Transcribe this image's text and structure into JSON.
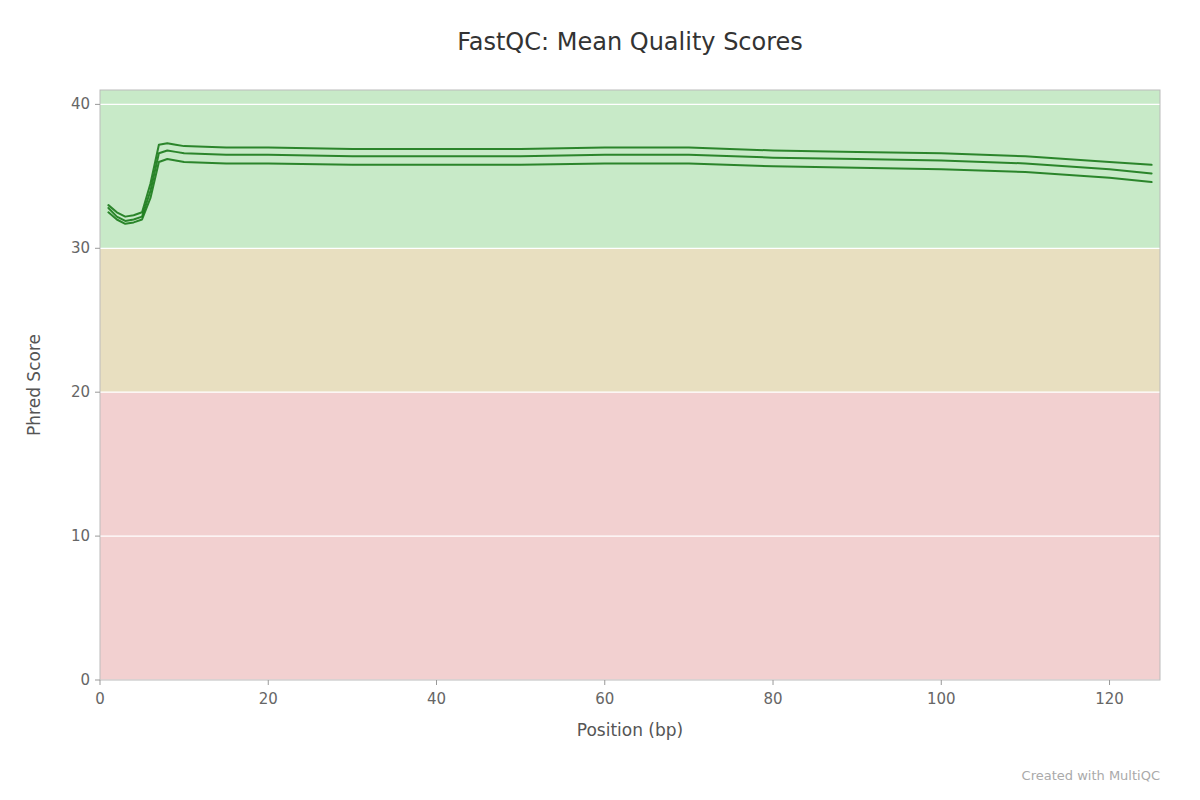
{
  "chart_data": {
    "type": "line",
    "title": "FastQC: Mean Quality Scores",
    "x_label": "Position (bp)",
    "y_label": "Phred Score",
    "annotations": [
      "Created with MultiQC"
    ],
    "xlim": [
      0,
      126
    ],
    "ylim": [
      0,
      41
    ],
    "xticks": [
      0,
      20,
      40,
      60,
      80,
      100,
      120
    ],
    "yticks": [
      0,
      10,
      20,
      30,
      40
    ],
    "grid": true,
    "bands": [
      {
        "ymin": 0,
        "ymax": 20,
        "color": "#f2d0d0"
      },
      {
        "ymin": 20,
        "ymax": 30,
        "color": "#e8dfc0"
      },
      {
        "ymin": 30,
        "ymax": 41,
        "color": "#c8eac8"
      }
    ],
    "x": [
      1,
      2,
      3,
      4,
      5,
      6,
      7,
      8,
      9,
      10,
      15,
      20,
      30,
      40,
      50,
      60,
      70,
      80,
      90,
      100,
      110,
      120,
      125
    ],
    "series": [
      {
        "color": "#1a7a1a",
        "values": [
          33.0,
          32.5,
          32.2,
          32.3,
          32.5,
          34.5,
          37.2,
          37.3,
          37.2,
          37.1,
          37.0,
          37.0,
          36.9,
          36.9,
          36.9,
          37.0,
          37.0,
          36.8,
          36.7,
          36.6,
          36.4,
          36.0,
          35.8
        ]
      },
      {
        "color": "#1a7a1a",
        "values": [
          32.8,
          32.2,
          31.9,
          32.0,
          32.2,
          34.0,
          36.6,
          36.8,
          36.7,
          36.6,
          36.5,
          36.5,
          36.4,
          36.4,
          36.4,
          36.5,
          36.5,
          36.3,
          36.2,
          36.1,
          35.9,
          35.5,
          35.2
        ]
      },
      {
        "color": "#1a7a1a",
        "values": [
          32.5,
          32.0,
          31.7,
          31.8,
          32.0,
          33.5,
          36.0,
          36.2,
          36.1,
          36.0,
          35.9,
          35.9,
          35.8,
          35.8,
          35.8,
          35.9,
          35.9,
          35.7,
          35.6,
          35.5,
          35.3,
          34.9,
          34.6
        ]
      }
    ]
  }
}
